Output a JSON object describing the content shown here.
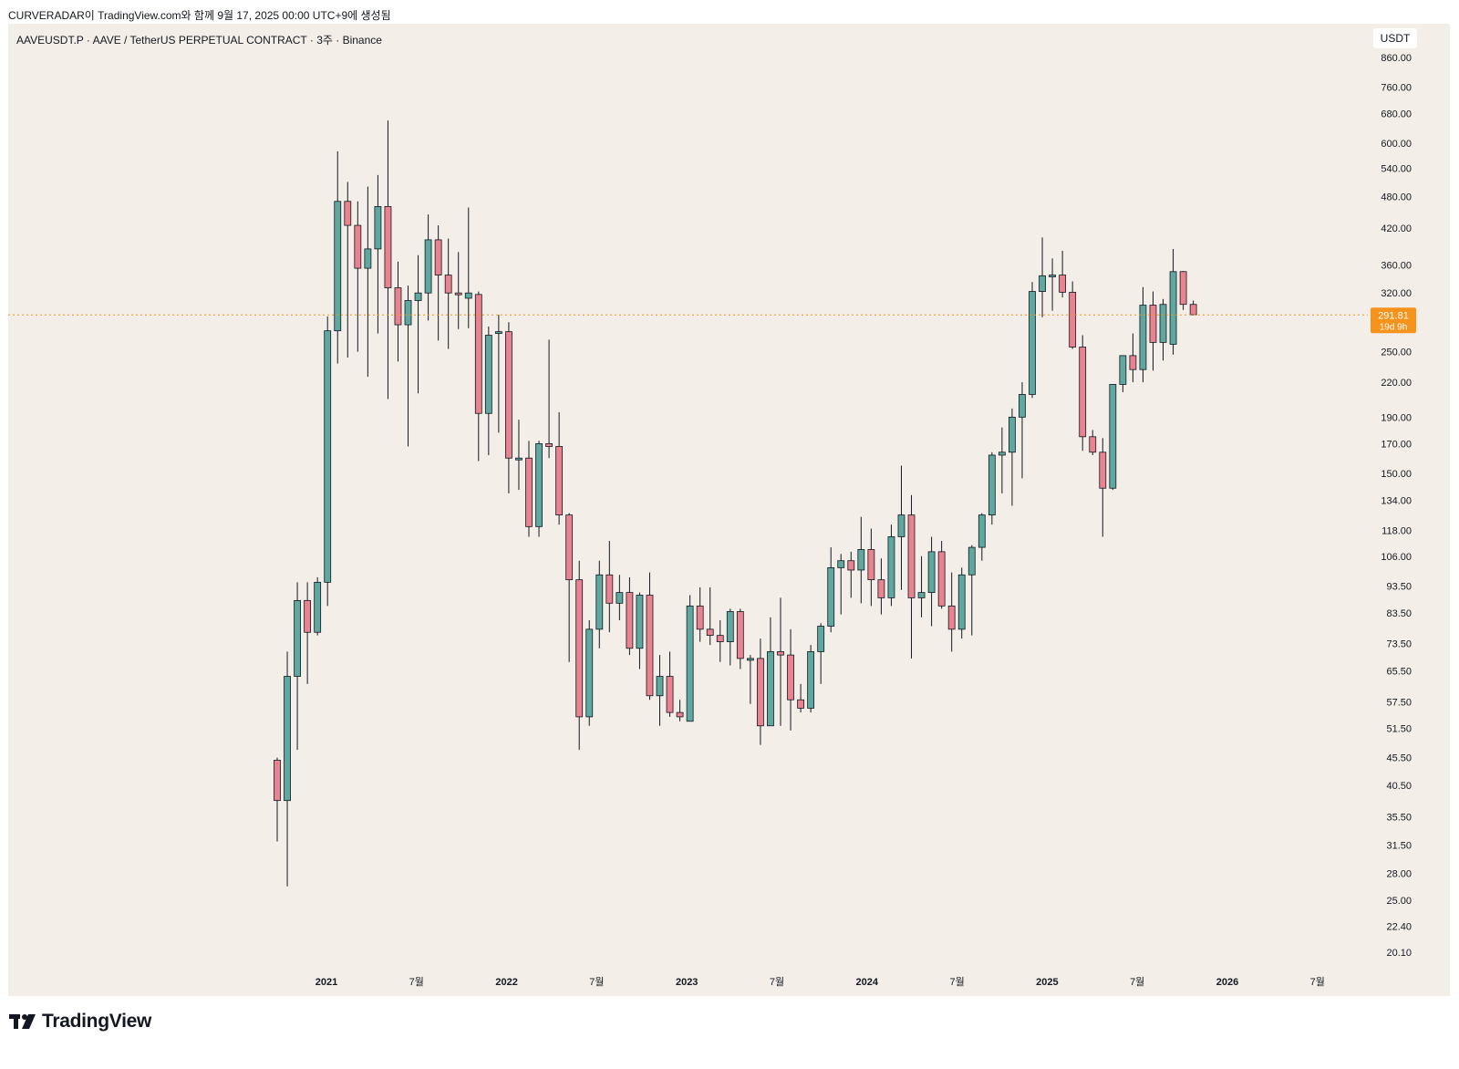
{
  "header": {
    "text": "CURVERADAR이 TradingView.com와 함께 9월 17, 2025 00:00 UTC+9에 생성됨"
  },
  "symbol": {
    "title": "AAVEUSDT.P · AAVE / TetherUS PERPETUAL CONTRACT · 3주 · Binance"
  },
  "price_unit": "USDT",
  "current_price": {
    "price": "291.81",
    "countdown": "19d 9h",
    "color": "#f7931a"
  },
  "brand": {
    "name": "TradingView",
    "logo_icon": "tradingview-logo-icon"
  },
  "colors": {
    "up": "#5fa89f",
    "down": "#e8838f",
    "wick": "#131722",
    "background": "#f3efe8"
  },
  "chart_data": {
    "type": "candlestick",
    "y_scale": "log",
    "ylim": [
      18.5,
      930
    ],
    "y_ticks": [
      "860.00",
      "760.00",
      "680.00",
      "600.00",
      "540.00",
      "480.00",
      "420.00",
      "360.00",
      "320.00",
      "250.00",
      "220.00",
      "190.00",
      "170.00",
      "150.00",
      "134.00",
      "118.00",
      "106.00",
      "93.50",
      "83.50",
      "73.50",
      "65.50",
      "57.50",
      "51.50",
      "45.50",
      "40.50",
      "35.50",
      "31.50",
      "28.00",
      "25.00",
      "22.40",
      "20.10"
    ],
    "x_ticks": [
      "2021",
      "7월",
      "2022",
      "7월",
      "2023",
      "7월",
      "2024",
      "7월",
      "2025",
      "7월",
      "2026",
      "7월"
    ],
    "grid": false,
    "candles": [
      {
        "o": 45,
        "h": 45.5,
        "l": 32,
        "c": 38
      },
      {
        "o": 38,
        "h": 71,
        "l": 26.5,
        "c": 64
      },
      {
        "o": 64,
        "h": 95,
        "l": 47,
        "c": 88
      },
      {
        "o": 88,
        "h": 95,
        "l": 62,
        "c": 77
      },
      {
        "o": 77,
        "h": 97,
        "l": 76,
        "c": 95
      },
      {
        "o": 95,
        "h": 290,
        "l": 86,
        "c": 273
      },
      {
        "o": 273,
        "h": 580,
        "l": 238,
        "c": 470
      },
      {
        "o": 470,
        "h": 510,
        "l": 244,
        "c": 425
      },
      {
        "o": 425,
        "h": 470,
        "l": 250,
        "c": 355
      },
      {
        "o": 355,
        "h": 500,
        "l": 225,
        "c": 385
      },
      {
        "o": 385,
        "h": 525,
        "l": 270,
        "c": 460
      },
      {
        "o": 460,
        "h": 660,
        "l": 205,
        "c": 327
      },
      {
        "o": 327,
        "h": 365,
        "l": 240,
        "c": 280
      },
      {
        "o": 280,
        "h": 330,
        "l": 168,
        "c": 310
      },
      {
        "o": 310,
        "h": 375,
        "l": 210,
        "c": 320
      },
      {
        "o": 320,
        "h": 445,
        "l": 285,
        "c": 400
      },
      {
        "o": 400,
        "h": 425,
        "l": 262,
        "c": 345
      },
      {
        "o": 345,
        "h": 402,
        "l": 253,
        "c": 320
      },
      {
        "o": 320,
        "h": 380,
        "l": 275,
        "c": 318
      },
      {
        "o": 313,
        "h": 458,
        "l": 276,
        "c": 320
      },
      {
        "o": 318,
        "h": 322,
        "l": 158,
        "c": 193
      },
      {
        "o": 193,
        "h": 278,
        "l": 162,
        "c": 268
      },
      {
        "o": 270,
        "h": 292,
        "l": 178,
        "c": 272
      },
      {
        "o": 272,
        "h": 283,
        "l": 138,
        "c": 160
      },
      {
        "o": 160,
        "h": 188,
        "l": 140,
        "c": 160
      },
      {
        "o": 160,
        "h": 172,
        "l": 115,
        "c": 120
      },
      {
        "o": 120,
        "h": 172,
        "l": 115,
        "c": 170
      },
      {
        "o": 170,
        "h": 263,
        "l": 160,
        "c": 168
      },
      {
        "o": 168,
        "h": 194,
        "l": 121,
        "c": 126
      },
      {
        "o": 126,
        "h": 127,
        "l": 68,
        "c": 96
      },
      {
        "o": 96,
        "h": 104,
        "l": 47,
        "c": 54
      },
      {
        "o": 54,
        "h": 81,
        "l": 52,
        "c": 78
      },
      {
        "o": 78,
        "h": 104,
        "l": 72,
        "c": 98
      },
      {
        "o": 98,
        "h": 113,
        "l": 77,
        "c": 87
      },
      {
        "o": 87,
        "h": 98,
        "l": 81,
        "c": 91
      },
      {
        "o": 91,
        "h": 97,
        "l": 70,
        "c": 72
      },
      {
        "o": 72,
        "h": 91,
        "l": 66,
        "c": 90
      },
      {
        "o": 90,
        "h": 99,
        "l": 58,
        "c": 59
      },
      {
        "o": 59,
        "h": 70,
        "l": 52,
        "c": 64
      },
      {
        "o": 64,
        "h": 71,
        "l": 54,
        "c": 55
      },
      {
        "o": 55,
        "h": 58,
        "l": 53,
        "c": 54
      },
      {
        "o": 53,
        "h": 90,
        "l": 53,
        "c": 86
      },
      {
        "o": 86,
        "h": 93,
        "l": 74,
        "c": 78
      },
      {
        "o": 78,
        "h": 93,
        "l": 73,
        "c": 76
      },
      {
        "o": 76,
        "h": 81,
        "l": 68,
        "c": 74
      },
      {
        "o": 74,
        "h": 85,
        "l": 67,
        "c": 84
      },
      {
        "o": 84,
        "h": 85,
        "l": 66,
        "c": 69
      },
      {
        "o": 69,
        "h": 70,
        "l": 57,
        "c": 69
      },
      {
        "o": 69,
        "h": 75,
        "l": 48,
        "c": 52
      },
      {
        "o": 52,
        "h": 82,
        "l": 52,
        "c": 71
      },
      {
        "o": 71,
        "h": 89,
        "l": 52,
        "c": 70
      },
      {
        "o": 70,
        "h": 78,
        "l": 51,
        "c": 58
      },
      {
        "o": 58,
        "h": 62,
        "l": 55,
        "c": 56
      },
      {
        "o": 56,
        "h": 73,
        "l": 55,
        "c": 71
      },
      {
        "o": 71,
        "h": 80,
        "l": 62,
        "c": 79
      },
      {
        "o": 79,
        "h": 110,
        "l": 77,
        "c": 101
      },
      {
        "o": 101,
        "h": 107,
        "l": 83,
        "c": 104
      },
      {
        "o": 104,
        "h": 108,
        "l": 89,
        "c": 100
      },
      {
        "o": 100,
        "h": 125,
        "l": 87,
        "c": 109
      },
      {
        "o": 109,
        "h": 119,
        "l": 86,
        "c": 96
      },
      {
        "o": 96,
        "h": 105,
        "l": 83,
        "c": 89
      },
      {
        "o": 89,
        "h": 121,
        "l": 86,
        "c": 115
      },
      {
        "o": 115,
        "h": 155,
        "l": 92,
        "c": 126
      },
      {
        "o": 126,
        "h": 137,
        "l": 69,
        "c": 89
      },
      {
        "o": 89,
        "h": 106,
        "l": 82,
        "c": 91
      },
      {
        "o": 91,
        "h": 115,
        "l": 79,
        "c": 108
      },
      {
        "o": 108,
        "h": 113,
        "l": 85,
        "c": 86
      },
      {
        "o": 86,
        "h": 99,
        "l": 71,
        "c": 78
      },
      {
        "o": 78,
        "h": 101,
        "l": 75,
        "c": 98
      },
      {
        "o": 98,
        "h": 111,
        "l": 76,
        "c": 110
      },
      {
        "o": 110,
        "h": 127,
        "l": 104,
        "c": 126
      },
      {
        "o": 126,
        "h": 164,
        "l": 121,
        "c": 162
      },
      {
        "o": 162,
        "h": 182,
        "l": 138,
        "c": 164
      },
      {
        "o": 164,
        "h": 197,
        "l": 131,
        "c": 190
      },
      {
        "o": 190,
        "h": 220,
        "l": 147,
        "c": 209
      },
      {
        "o": 209,
        "h": 335,
        "l": 206,
        "c": 322
      },
      {
        "o": 322,
        "h": 404,
        "l": 289,
        "c": 344
      },
      {
        "o": 344,
        "h": 370,
        "l": 297,
        "c": 345
      },
      {
        "o": 345,
        "h": 382,
        "l": 314,
        "c": 321
      },
      {
        "o": 321,
        "h": 336,
        "l": 253,
        "c": 255
      },
      {
        "o": 255,
        "h": 268,
        "l": 165,
        "c": 175
      },
      {
        "o": 175,
        "h": 180,
        "l": 162,
        "c": 164
      },
      {
        "o": 164,
        "h": 174,
        "l": 115,
        "c": 141
      },
      {
        "o": 141,
        "h": 217,
        "l": 140,
        "c": 218
      },
      {
        "o": 218,
        "h": 246,
        "l": 211,
        "c": 246
      },
      {
        "o": 246,
        "h": 270,
        "l": 220,
        "c": 232
      },
      {
        "o": 232,
        "h": 328,
        "l": 220,
        "c": 304
      },
      {
        "o": 304,
        "h": 322,
        "l": 231,
        "c": 260
      },
      {
        "o": 260,
        "h": 312,
        "l": 241,
        "c": 305
      },
      {
        "o": 258,
        "h": 385,
        "l": 247,
        "c": 350
      },
      {
        "o": 350,
        "h": 351,
        "l": 298,
        "c": 305
      },
      {
        "o": 305,
        "h": 310,
        "l": 292,
        "c": 292
      }
    ]
  }
}
